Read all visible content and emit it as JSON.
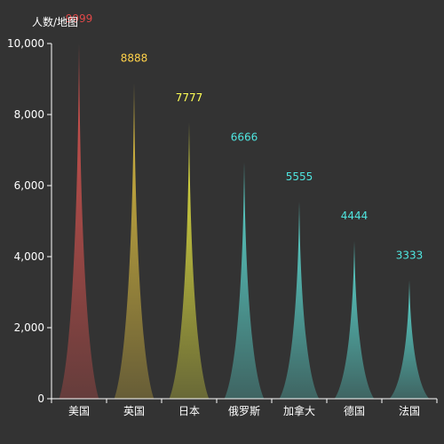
{
  "chart_data": {
    "type": "bar",
    "title": "",
    "ylabel": "人数/地图",
    "xlabel": "",
    "ylim": [
      0,
      10000
    ],
    "y_ticks": [
      0,
      2000,
      4000,
      6000,
      8000,
      10000
    ],
    "y_tick_labels": [
      "0",
      "2,000",
      "4,000",
      "6,000",
      "8,000",
      "10,000"
    ],
    "categories": [
      "美国",
      "英国",
      "日本",
      "俄罗斯",
      "加拿大",
      "德国",
      "法国"
    ],
    "values": [
      9999,
      8888,
      7777,
      6666,
      5555,
      4444,
      3333
    ],
    "value_labels": [
      "9999",
      "8888",
      "7777",
      "6666",
      "5555",
      "4444",
      "3333"
    ],
    "colors": [
      "#d9534f",
      "#e0c040",
      "#e6e640",
      "#5bd8d0",
      "#5bd8d0",
      "#5bd8d0",
      "#5bd8d0"
    ],
    "label_colors": [
      "#e04848",
      "#ffd24a",
      "#ffff55",
      "#4fe6e0",
      "#4fe6e0",
      "#4fe6e0",
      "#4fe6e0"
    ],
    "legend": "none",
    "grid": false,
    "bar_style": "pictorial-spike"
  }
}
